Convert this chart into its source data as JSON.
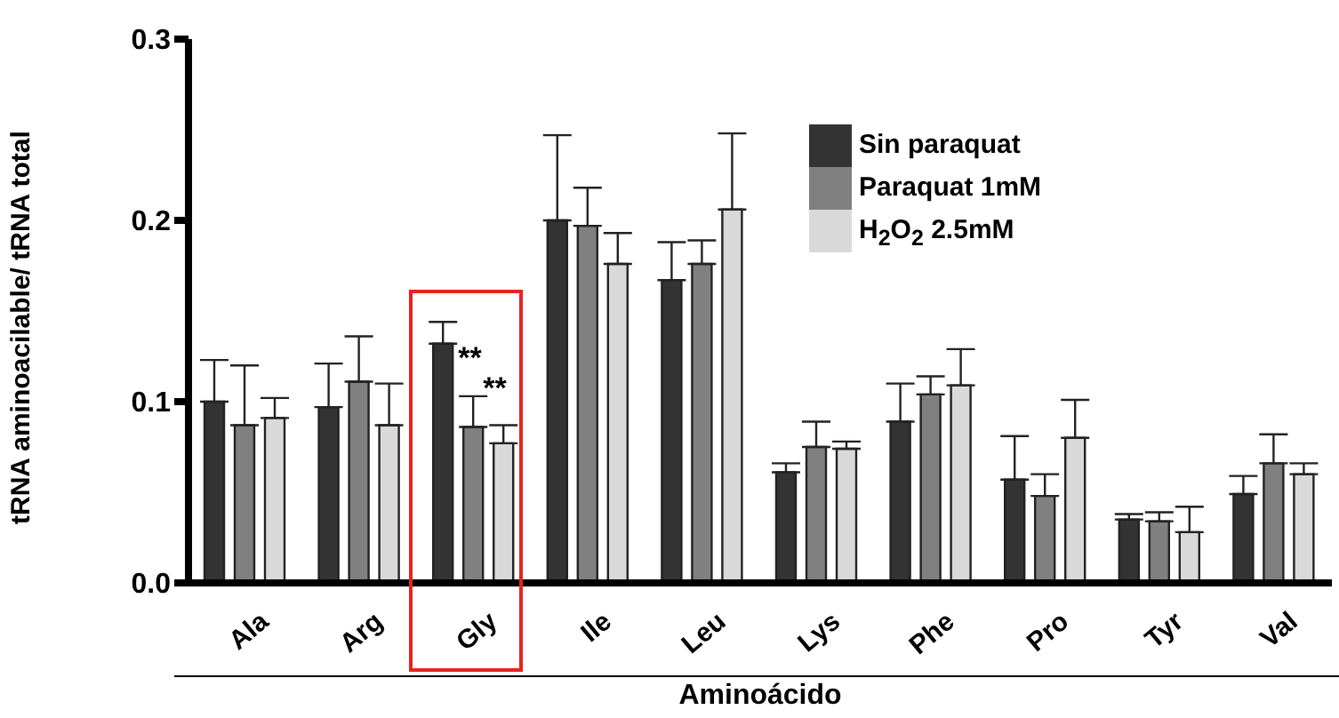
{
  "chart_data": {
    "type": "bar",
    "xlabel": "Aminoácido",
    "ylabel": "tRNA aminoacilable/ tRNA total",
    "categories": [
      "Ala",
      "Arg",
      "Gly",
      "Ile",
      "Leu",
      "Lys",
      "Phe",
      "Pro",
      "Tyr",
      "Val"
    ],
    "series": [
      {
        "name": "Sin paraquat",
        "color": "#333333",
        "values": [
          0.1,
          0.097,
          0.132,
          0.2,
          0.167,
          0.061,
          0.089,
          0.057,
          0.035,
          0.049
        ],
        "errors": [
          [
            0.1,
            0.123
          ],
          [
            0.097,
            0.121
          ],
          [
            0.132,
            0.144
          ],
          [
            0.2,
            0.247
          ],
          [
            0.167,
            0.188
          ],
          [
            0.061,
            0.066
          ],
          [
            0.089,
            0.11
          ],
          [
            0.057,
            0.081
          ],
          [
            0.035,
            0.038
          ],
          [
            0.049,
            0.059
          ]
        ]
      },
      {
        "name": "Paraquat 1mM",
        "color": "#808080",
        "values": [
          0.087,
          0.111,
          0.086,
          0.197,
          0.176,
          0.075,
          0.104,
          0.048,
          0.034,
          0.066
        ],
        "errors": [
          [
            0.087,
            0.12
          ],
          [
            0.111,
            0.136
          ],
          [
            0.086,
            0.103
          ],
          [
            0.197,
            0.218
          ],
          [
            0.176,
            0.189
          ],
          [
            0.075,
            0.089
          ],
          [
            0.104,
            0.114
          ],
          [
            0.048,
            0.06
          ],
          [
            0.034,
            0.039
          ],
          [
            0.066,
            0.082
          ]
        ]
      },
      {
        "name": "H$_{2}$O$_{2}$ 2.5mM",
        "color": "#d9d9d9",
        "values": [
          0.091,
          0.087,
          0.077,
          0.176,
          0.206,
          0.074,
          0.109,
          0.08,
          0.028,
          0.06
        ],
        "errors": [
          [
            0.091,
            0.102
          ],
          [
            0.087,
            0.11
          ],
          [
            0.077,
            0.087
          ],
          [
            0.176,
            0.193
          ],
          [
            0.206,
            0.248
          ],
          [
            0.074,
            0.078
          ],
          [
            0.109,
            0.129
          ],
          [
            0.08,
            0.101
          ],
          [
            0.028,
            0.042
          ],
          [
            0.06,
            0.066
          ]
        ]
      }
    ],
    "ylim": [
      0,
      0.3
    ],
    "yticks": [
      {
        "value": 0,
        "label": "0.0"
      },
      0.1,
      0.2,
      0.3
    ],
    "annotations": [
      "**",
      "**"
    ],
    "legend": "top right"
  }
}
